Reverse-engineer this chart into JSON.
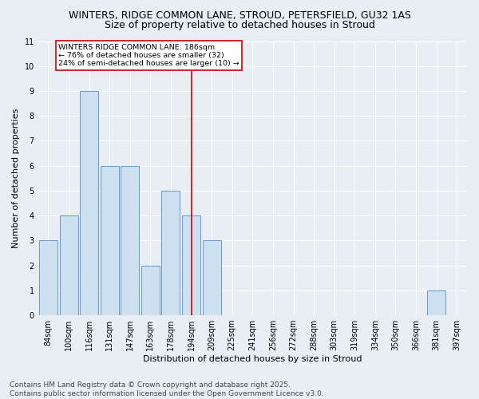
{
  "title1": "WINTERS, RIDGE COMMON LANE, STROUD, PETERSFIELD, GU32 1AS",
  "title2": "Size of property relative to detached houses in Stroud",
  "xlabel": "Distribution of detached houses by size in Stroud",
  "ylabel": "Number of detached properties",
  "categories": [
    "84sqm",
    "100sqm",
    "116sqm",
    "131sqm",
    "147sqm",
    "163sqm",
    "178sqm",
    "194sqm",
    "209sqm",
    "225sqm",
    "241sqm",
    "256sqm",
    "272sqm",
    "288sqm",
    "303sqm",
    "319sqm",
    "334sqm",
    "350sqm",
    "366sqm",
    "381sqm",
    "397sqm"
  ],
  "values": [
    3,
    4,
    9,
    6,
    6,
    2,
    5,
    4,
    3,
    0,
    0,
    0,
    0,
    0,
    0,
    0,
    0,
    0,
    0,
    1,
    0
  ],
  "bar_color": "#cce0f0",
  "bar_edge_color": "#6699cc",
  "vline_x_index": 7.0,
  "vline_color": "#cc0000",
  "annotation_text": "WINTERS RIDGE COMMON LANE: 186sqm\n← 76% of detached houses are smaller (32)\n24% of semi-detached houses are larger (10) →",
  "annotation_box_color": "#ffffff",
  "annotation_box_edge": "#cc0000",
  "ylim": [
    0,
    11
  ],
  "yticks": [
    0,
    1,
    2,
    3,
    4,
    5,
    6,
    7,
    8,
    9,
    10,
    11
  ],
  "footnote": "Contains HM Land Registry data © Crown copyright and database right 2025.\nContains public sector information licensed under the Open Government Licence v3.0.",
  "bg_color": "#e8eef4",
  "plot_bg_color": "#e8eef4",
  "grid_color": "#ffffff",
  "title_fontsize": 9,
  "subtitle_fontsize": 9,
  "axis_label_fontsize": 8,
  "tick_fontsize": 7,
  "footnote_fontsize": 6.5
}
